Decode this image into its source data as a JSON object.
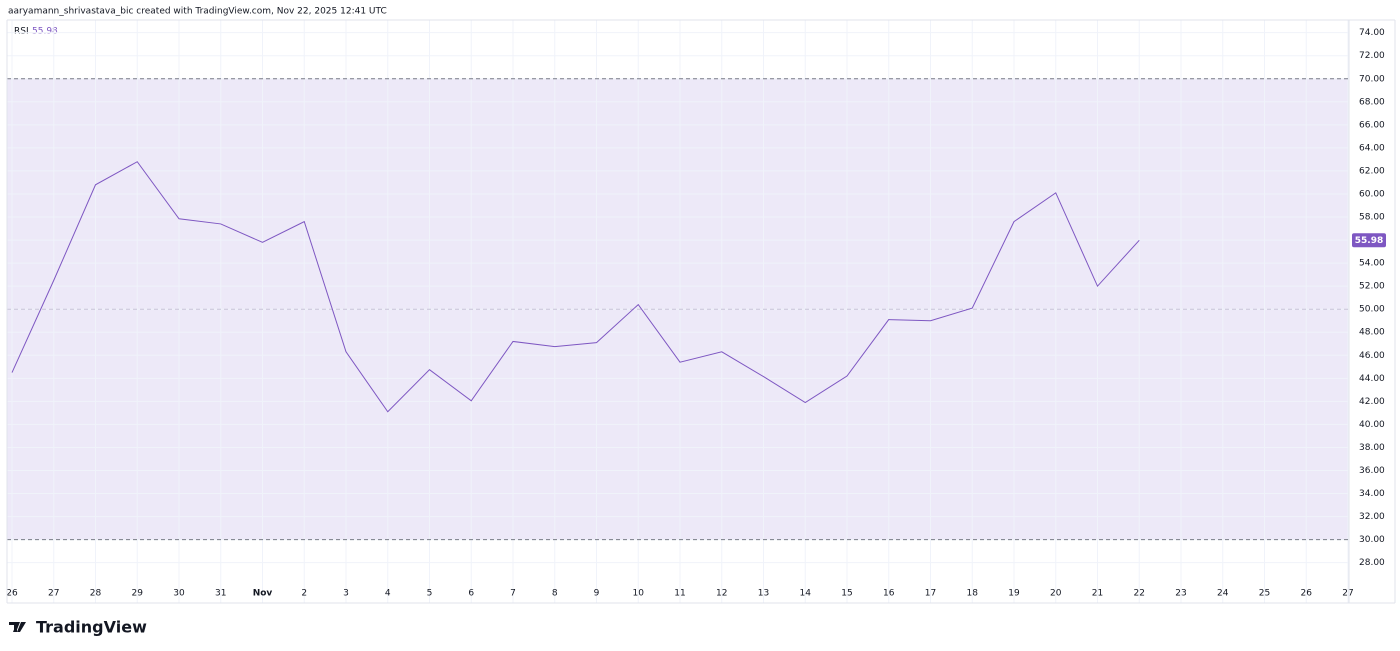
{
  "header": {
    "attribution": "aaryamann_shrivastava_bic created with TradingView.com, Nov 22, 2025 12:41 UTC"
  },
  "footer": {
    "brand": "TradingView"
  },
  "chart_data": {
    "type": "line",
    "categories": [
      "26",
      "27",
      "28",
      "29",
      "30",
      "31",
      "Nov",
      "2",
      "3",
      "4",
      "5",
      "6",
      "7",
      "8",
      "9",
      "10",
      "11",
      "12",
      "13",
      "14",
      "15",
      "16",
      "17",
      "18",
      "19",
      "20",
      "21",
      "22",
      "23",
      "24",
      "25",
      "26",
      "27"
    ],
    "series": [
      {
        "name": "RSI",
        "color": "#7e57c2",
        "values": [
          44.5,
          52.5,
          60.8,
          62.8,
          57.85,
          57.4,
          55.8,
          57.6,
          46.3,
          41.1,
          44.75,
          42.05,
          47.2,
          46.75,
          47.1,
          50.4,
          45.4,
          46.3,
          44.15,
          41.9,
          44.2,
          49.1,
          49.0,
          50.1,
          57.6,
          60.1,
          52.0,
          55.98,
          null,
          null,
          null,
          null,
          null
        ]
      }
    ],
    "ylim": [
      24.5,
      75.1
    ],
    "yticks": [
      {
        "value": 28,
        "label": "28.00"
      },
      {
        "value": 30,
        "label": "30.00"
      },
      {
        "value": 32,
        "label": "32.00"
      },
      {
        "value": 34,
        "label": "34.00"
      },
      {
        "value": 36,
        "label": "36.00"
      },
      {
        "value": 38,
        "label": "38.00"
      },
      {
        "value": 40,
        "label": "40.00"
      },
      {
        "value": 42,
        "label": "42.00"
      },
      {
        "value": 44,
        "label": "44.00"
      },
      {
        "value": 46,
        "label": "46.00"
      },
      {
        "value": 48,
        "label": "48.00"
      },
      {
        "value": 50,
        "label": "50.00"
      },
      {
        "value": 52,
        "label": "52.00"
      },
      {
        "value": 54,
        "label": "54.00"
      },
      {
        "value": 56,
        "label": "56.00"
      },
      {
        "value": 58,
        "label": "58.00"
      },
      {
        "value": 60,
        "label": "60.00"
      },
      {
        "value": 62,
        "label": "62.00"
      },
      {
        "value": 64,
        "label": "64.00"
      },
      {
        "value": 66,
        "label": "66.00"
      },
      {
        "value": 68,
        "label": "68.00"
      },
      {
        "value": 70,
        "label": "70.00"
      },
      {
        "value": 72,
        "label": "72.00"
      },
      {
        "value": 74,
        "label": "74.00"
      }
    ],
    "bands": {
      "upper": 70,
      "middle": 50,
      "lower": 30,
      "fill": "#ede9f8"
    },
    "grid": true
  }
}
